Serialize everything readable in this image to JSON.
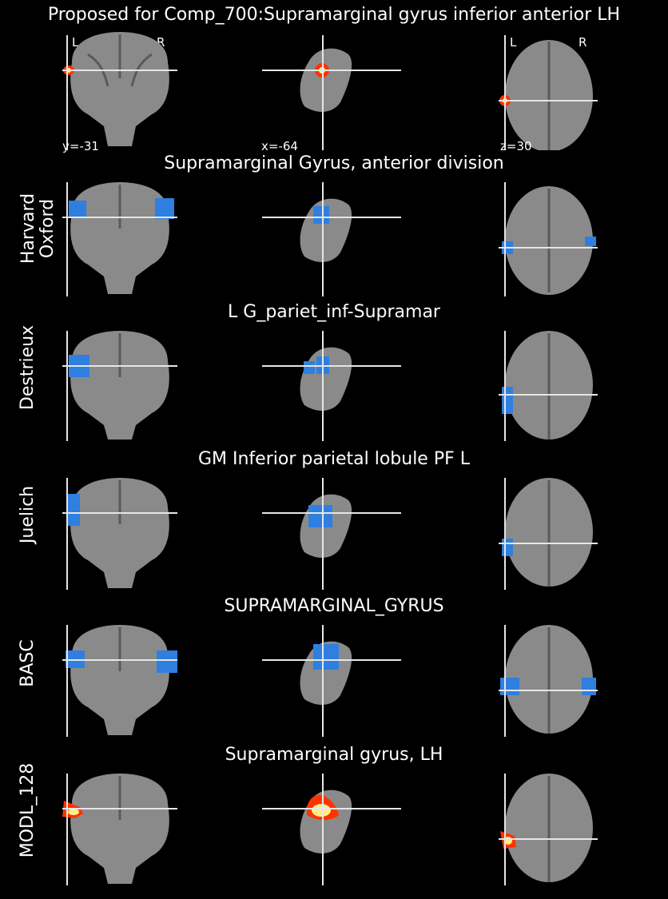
{
  "title": "Proposed for Comp_700:Supramarginal gyrus inferior anterior LH",
  "coords": {
    "y": "y=-31",
    "x": "x=-64",
    "z": "z=30"
  },
  "orientation": {
    "left": "L",
    "right": "R"
  },
  "colors": {
    "atlas": "#2e7fe0",
    "proposed": "#ff3300",
    "crosshair": "#e6e6e6",
    "brain": "#8a8a8a"
  },
  "rows": [
    {
      "label": "",
      "title": ""
    },
    {
      "label": "Harvard Oxford",
      "title": "Supramarginal Gyrus, anterior division"
    },
    {
      "label": "Destrieux",
      "title": "L G_pariet_inf-Supramar"
    },
    {
      "label": "Juelich",
      "title": "GM Inferior parietal lobule PF L"
    },
    {
      "label": "BASC",
      "title": "SUPRAMARGINAL_GYRUS"
    },
    {
      "label": "MODL_128",
      "title": "Supramarginal gyrus, LH"
    }
  ]
}
